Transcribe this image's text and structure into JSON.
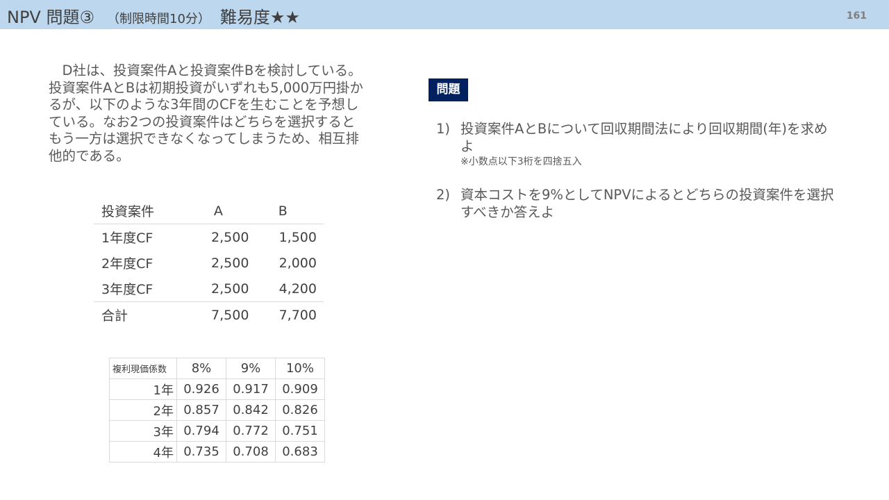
{
  "header": {
    "title": "NPV 問題③",
    "subtitle": "（制限時間10分）",
    "difficulty": "難易度★★",
    "page_number": "161",
    "bg_color": "#bdd7ee"
  },
  "intro": "　D社は、投資案件Aと投資案件Bを検討している。投資案件AとBは初期投資がいずれも5,000万円掛かるが、以下のような3年間のCFを生むことを予想している。なお2つの投資案件はどちらを選択するともう一方は選択できなくなってしまうため、相互排他的である。",
  "cf_table": {
    "headers": [
      "投資案件",
      "A",
      "B"
    ],
    "rows": [
      [
        "1年度CF",
        "2,500",
        "1,500"
      ],
      [
        "2年度CF",
        "2,500",
        "2,000"
      ],
      [
        "3年度CF",
        "2,500",
        "4,200"
      ],
      [
        "合計",
        "7,500",
        "7,700"
      ]
    ]
  },
  "pv_table": {
    "headers": [
      "複利現価係数",
      "8%",
      "9%",
      "10%"
    ],
    "rows": [
      [
        "1年",
        "0.926",
        "0.917",
        "0.909"
      ],
      [
        "2年",
        "0.857",
        "0.842",
        "0.826"
      ],
      [
        "3年",
        "0.794",
        "0.772",
        "0.751"
      ],
      [
        "4年",
        "0.735",
        "0.708",
        "0.683"
      ]
    ]
  },
  "problem": {
    "badge": "問題",
    "badge_color": "#002060",
    "items": [
      {
        "num": "1)",
        "text": "投資案件AとBについて回収期間法により回収期間(年)を求めよ",
        "note": "※小数点以下3桁を四捨五入"
      },
      {
        "num": "2)",
        "text": "資本コストを9%としてNPVによるとどちらの投資案件を選択すべきか答えよ"
      }
    ]
  }
}
